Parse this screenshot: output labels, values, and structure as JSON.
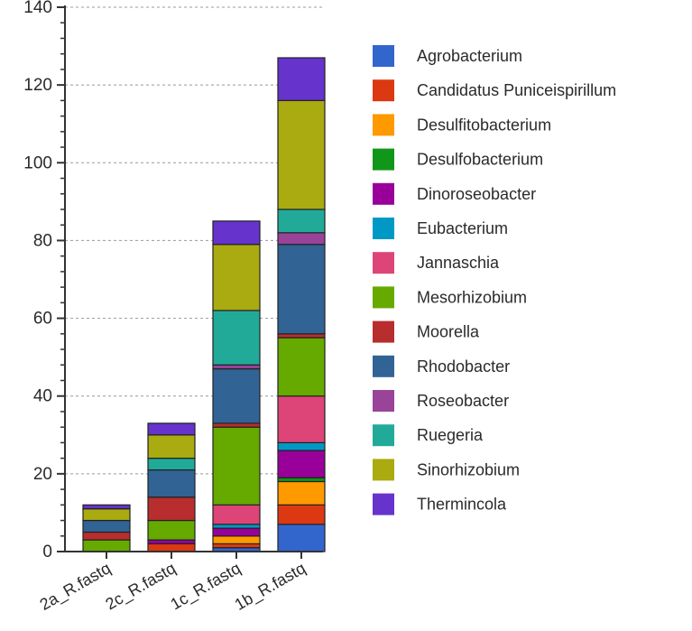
{
  "chart_data": {
    "type": "bar",
    "stacked": true,
    "title": "",
    "xlabel": "",
    "ylabel": "",
    "ylim": [
      0,
      140
    ],
    "yticks": [
      0,
      20,
      40,
      60,
      80,
      100,
      120,
      140
    ],
    "grid": true,
    "legend_position": "right",
    "categories": [
      "2a_R.fastq",
      "2c_R.fastq",
      "1c_R.fastq",
      "1b_R.fastq"
    ],
    "series": [
      {
        "name": "Agrobacterium",
        "color": "#3366cc",
        "values": [
          0,
          0,
          1,
          7
        ]
      },
      {
        "name": "Candidatus Puniceispirillum",
        "color": "#dc3912",
        "values": [
          0,
          2,
          1,
          5
        ]
      },
      {
        "name": "Desulfitobacterium",
        "color": "#ff9900",
        "values": [
          0,
          0,
          2,
          6
        ]
      },
      {
        "name": "Desulfobacterium",
        "color": "#109618",
        "values": [
          0,
          0,
          0,
          1
        ]
      },
      {
        "name": "Dinoroseobacter",
        "color": "#990099",
        "values": [
          0,
          1,
          2,
          7
        ]
      },
      {
        "name": "Eubacterium",
        "color": "#0099c6",
        "values": [
          0,
          0,
          1,
          2
        ]
      },
      {
        "name": "Jannaschia",
        "color": "#dd4477",
        "values": [
          0,
          0,
          5,
          12
        ]
      },
      {
        "name": "Mesorhizobium",
        "color": "#66aa00",
        "values": [
          3,
          5,
          20,
          15
        ]
      },
      {
        "name": "Moorella",
        "color": "#b82e2e",
        "values": [
          2,
          6,
          1,
          1
        ]
      },
      {
        "name": "Rhodobacter",
        "color": "#316395",
        "values": [
          3,
          7,
          14,
          23
        ]
      },
      {
        "name": "Roseobacter",
        "color": "#994499",
        "values": [
          0,
          0,
          1,
          3
        ]
      },
      {
        "name": "Ruegeria",
        "color": "#22aa99",
        "values": [
          0,
          3,
          14,
          6
        ]
      },
      {
        "name": "Sinorhizobium",
        "color": "#aaaa11",
        "values": [
          3,
          6,
          17,
          28
        ]
      },
      {
        "name": "Thermincola",
        "color": "#6633cc",
        "values": [
          1,
          3,
          6,
          11
        ]
      }
    ]
  }
}
